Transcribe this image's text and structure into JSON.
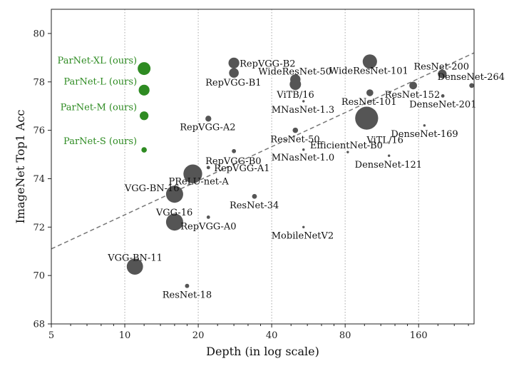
{
  "chart_data": {
    "type": "scatter",
    "xlabel": "Depth (in log scale)",
    "ylabel": "ImageNet Top1 Acc",
    "xscale": "log2",
    "xlim": [
      5,
      270
    ],
    "ylim": [
      68,
      81
    ],
    "xticks": [
      5,
      10,
      20,
      40,
      80,
      160
    ],
    "yticks": [
      68,
      70,
      72,
      74,
      76,
      78,
      80
    ],
    "grid": "vertical dotted at x ticks",
    "trendline": {
      "style": "dashed",
      "color": "#777777",
      "from": [
        5,
        71.1
      ],
      "to": [
        270,
        79.2
      ]
    },
    "colors": {
      "ours": "#2e8b22",
      "baseline": "#555555"
    },
    "points": [
      {
        "name": "ParNet-XL (ours)",
        "depth": 12,
        "acc": 78.55,
        "params": 28,
        "group": "ours",
        "anchor": "end",
        "dx": -10,
        "dy": -7
      },
      {
        "name": "ParNet-L (ours)",
        "depth": 12,
        "acc": 77.66,
        "params": 20,
        "group": "ours",
        "anchor": "end",
        "dx": -10,
        "dy": -8
      },
      {
        "name": "ParNet-M (ours)",
        "depth": 12,
        "acc": 76.6,
        "params": 13,
        "group": "ours",
        "anchor": "end",
        "dx": -10,
        "dy": -8
      },
      {
        "name": "ParNet-S (ours)",
        "depth": 12,
        "acc": 75.19,
        "params": 5,
        "group": "ours",
        "anchor": "end",
        "dx": -10,
        "dy": -8
      },
      {
        "name": "VGG-BN-11",
        "depth": 11,
        "acc": 70.37,
        "params": 45,
        "group": "baseline",
        "anchor": "start",
        "dx": -38,
        "dy": -8
      },
      {
        "name": "VGG-16",
        "depth": 16,
        "acc": 72.21,
        "params": 50,
        "group": "baseline",
        "anchor": "start",
        "dx": -26,
        "dy": -9
      },
      {
        "name": "VGG-BN-16",
        "depth": 16,
        "acc": 73.36,
        "params": 50,
        "group": "baseline",
        "anchor": "start",
        "dx": -70,
        "dy": -4
      },
      {
        "name": "PReLU-net-A",
        "depth": 19,
        "acc": 74.2,
        "params": 60,
        "group": "baseline",
        "anchor": "start",
        "dx": -34,
        "dy": 15
      },
      {
        "name": "ResNet-18",
        "depth": 18,
        "acc": 69.57,
        "params": 3,
        "group": "baseline",
        "anchor": "middle",
        "dx": 0,
        "dy": 17
      },
      {
        "name": "ResNet-34",
        "depth": 34,
        "acc": 73.27,
        "params": 4,
        "group": "baseline",
        "anchor": "start",
        "dx": -35,
        "dy": 17
      },
      {
        "name": "RepVGG-A0",
        "depth": 22,
        "acc": 72.41,
        "params": 2,
        "group": "baseline",
        "anchor": "start",
        "dx": -39,
        "dy": 17
      },
      {
        "name": "RepVGG-A1",
        "depth": 22,
        "acc": 74.46,
        "params": 2,
        "group": "baseline",
        "anchor": "start",
        "dx": 8,
        "dy": 5
      },
      {
        "name": "RepVGG-A2",
        "depth": 22,
        "acc": 76.48,
        "params": 6,
        "group": "baseline",
        "anchor": "start",
        "dx": -40,
        "dy": 16
      },
      {
        "name": "RepVGG-B0",
        "depth": 28,
        "acc": 75.14,
        "params": 3,
        "group": "baseline",
        "anchor": "start",
        "dx": -40,
        "dy": 18
      },
      {
        "name": "RepVGG-B1",
        "depth": 28,
        "acc": 78.37,
        "params": 16,
        "group": "baseline",
        "anchor": "start",
        "dx": -40,
        "dy": 18
      },
      {
        "name": "RepVGG-B2",
        "depth": 28,
        "acc": 78.78,
        "params": 20,
        "group": "baseline",
        "anchor": "start",
        "dx": 8,
        "dy": 5
      },
      {
        "name": "WideResNet-50",
        "depth": 50,
        "acc": 78.1,
        "params": 18,
        "group": "baseline",
        "anchor": "start",
        "dx": -52,
        "dy": -7
      },
      {
        "name": "ViTB/16",
        "depth": 50,
        "acc": 77.9,
        "params": 22,
        "group": "baseline",
        "anchor": "start",
        "dx": -26,
        "dy": 19
      },
      {
        "name": "ResNet-50",
        "depth": 50,
        "acc": 76.0,
        "params": 5,
        "group": "baseline",
        "anchor": "start",
        "dx": -35,
        "dy": 17
      },
      {
        "name": "MNasNet-1.3",
        "depth": 54,
        "acc": 77.2,
        "params": 1,
        "group": "baseline",
        "anchor": "start",
        "dx": -45,
        "dy": 16
      },
      {
        "name": "MNasNet-1.0",
        "depth": 54,
        "acc": 75.2,
        "params": 1,
        "group": "baseline",
        "anchor": "start",
        "dx": -45,
        "dy": 15
      },
      {
        "name": "MobileNetV2",
        "depth": 54,
        "acc": 72.0,
        "params": 1,
        "group": "baseline",
        "anchor": "start",
        "dx": -45,
        "dy": 16
      },
      {
        "name": "EfficientNet-B0",
        "depth": 82,
        "acc": 75.1,
        "params": 1,
        "group": "baseline",
        "anchor": "start",
        "dx": -53,
        "dy": -5
      },
      {
        "name": "WideResNet-101",
        "depth": 101,
        "acc": 78.84,
        "params": 35,
        "group": "baseline",
        "anchor": "start",
        "dx": -57,
        "dy": 17
      },
      {
        "name": "ResNet-101",
        "depth": 101,
        "acc": 77.55,
        "params": 8,
        "group": "baseline",
        "anchor": "start",
        "dx": -40,
        "dy": 17
      },
      {
        "name": "ViTL/16",
        "depth": 98,
        "acc": 76.5,
        "params": 90,
        "group": "baseline",
        "anchor": "start",
        "dx": 0,
        "dy": 35
      },
      {
        "name": "DenseNet-121",
        "depth": 121,
        "acc": 74.95,
        "params": 1,
        "group": "baseline",
        "anchor": "start",
        "dx": -48,
        "dy": 17
      },
      {
        "name": "ResNet-152",
        "depth": 152,
        "acc": 77.85,
        "params": 10,
        "group": "baseline",
        "anchor": "start",
        "dx": -40,
        "dy": 17
      },
      {
        "name": "DenseNet-169",
        "depth": 169,
        "acc": 76.2,
        "params": 1,
        "group": "baseline",
        "anchor": "start",
        "dx": -47,
        "dy": 16
      },
      {
        "name": "DenseNet-201",
        "depth": 201,
        "acc": 77.42,
        "params": 2,
        "group": "baseline",
        "anchor": "start",
        "dx": -47,
        "dy": 16
      },
      {
        "name": "ResNet-200",
        "depth": 200,
        "acc": 78.33,
        "params": 13,
        "group": "baseline",
        "anchor": "start",
        "dx": -40,
        "dy": -6
      },
      {
        "name": "DenseNet-264",
        "depth": 264,
        "acc": 77.85,
        "params": 4,
        "group": "baseline",
        "anchor": "start",
        "dx": -48,
        "dy": -8
      }
    ]
  }
}
